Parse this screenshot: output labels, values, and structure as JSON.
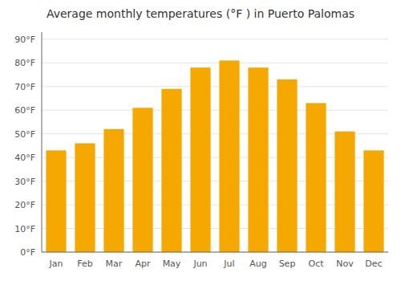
{
  "chart_data": {
    "type": "bar",
    "title": "Average monthly temperatures (°F ) in Puerto Palomas",
    "categories": [
      "Jan",
      "Feb",
      "Mar",
      "Apr",
      "May",
      "Jun",
      "Jul",
      "Aug",
      "Sep",
      "Oct",
      "Nov",
      "Dec"
    ],
    "values": [
      43,
      46,
      52,
      61,
      69,
      78,
      81,
      78,
      73,
      63,
      51,
      43
    ],
    "color": "#F5A800",
    "ylim": [
      0,
      93
    ],
    "yticks": [
      {
        "value": 0,
        "label": "0°F"
      },
      {
        "value": 10,
        "label": "10°F"
      },
      {
        "value": 20,
        "label": "20°F"
      },
      {
        "value": 30,
        "label": "30°F"
      },
      {
        "value": 40,
        "label": "40°F"
      },
      {
        "value": 50,
        "label": "50°F"
      },
      {
        "value": 60,
        "label": "60°F"
      },
      {
        "value": 70,
        "label": "70°F"
      },
      {
        "value": 80,
        "label": "80°F"
      },
      {
        "value": 90,
        "label": "90°F"
      }
    ],
    "grid": true
  }
}
